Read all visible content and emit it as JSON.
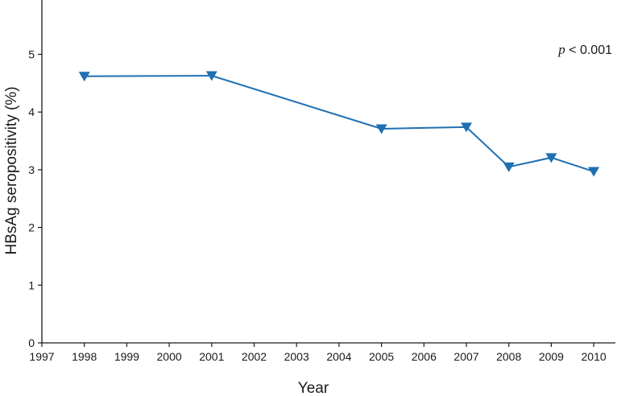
{
  "chart_data": {
    "type": "line",
    "title": "",
    "xlabel": "Year",
    "ylabel": "HBsAg seropositivity (%)",
    "x_ticks": [
      "1997",
      "1998",
      "1999",
      "2000",
      "2001",
      "2002",
      "2003",
      "2004",
      "2005",
      "2006",
      "2007",
      "2008",
      "2009",
      "2010"
    ],
    "y_ticks": [
      "0",
      "1",
      "2",
      "3",
      "4",
      "5"
    ],
    "ylim": [
      0,
      5.8
    ],
    "grid": false,
    "legend": "none",
    "series": [
      {
        "color": "#1f6fb2",
        "marker": "triangle-down",
        "points": [
          {
            "x": "1998",
            "y": 4.62
          },
          {
            "x": "2001",
            "y": 4.63
          },
          {
            "x": "2005",
            "y": 3.71
          },
          {
            "x": "2007",
            "y": 3.74
          },
          {
            "x": "2008",
            "y": 3.05
          },
          {
            "x": "2009",
            "y": 3.21
          },
          {
            "x": "2010",
            "y": 2.97
          }
        ]
      }
    ],
    "annotation": {
      "italic_part": "p",
      "rest": " < 0.001"
    }
  }
}
